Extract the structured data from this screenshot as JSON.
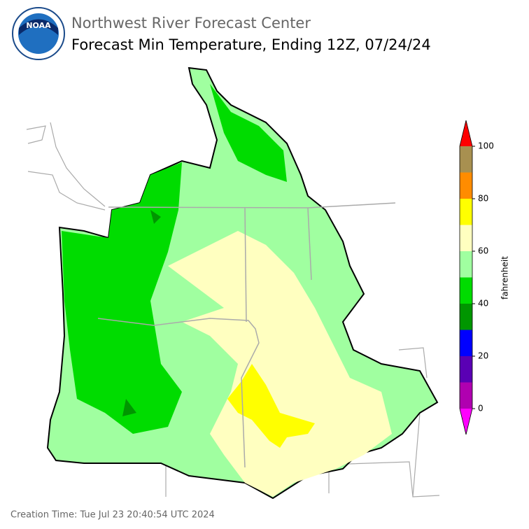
{
  "header": {
    "logo_text": "NOAA",
    "org": "Northwest River Forecast Center",
    "title": "Forecast Min Temperature, Ending 12Z, 07/24/24"
  },
  "colorbar": {
    "label": "fahrenheit",
    "ticks": [
      0,
      20,
      40,
      60,
      80,
      100
    ],
    "bins": [
      0,
      10,
      20,
      30,
      40,
      50,
      60,
      70,
      80,
      90,
      100
    ],
    "colors": [
      "#b000b0",
      "#5a00b4",
      "#0000ff",
      "#009600",
      "#00dc00",
      "#a0ffa0",
      "#ffffc0",
      "#ffff00",
      "#ff8c00",
      "#a89050"
    ],
    "under_color": "#ff00ff",
    "over_color": "#ff0000"
  },
  "footer": {
    "creation": "Creation Time: Tue Jul 23 20:40:54 UTC 2024"
  }
}
